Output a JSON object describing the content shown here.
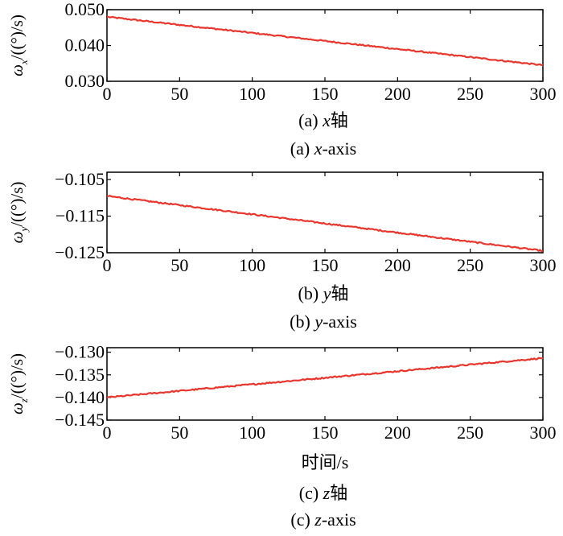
{
  "chart_data": [
    {
      "type": "line",
      "ylabel": {
        "symbol": "ω",
        "subscript": "x",
        "unit": "/((°)/s)"
      },
      "xlabel": "",
      "caption_cn": {
        "prefix": "(a) ",
        "axis": "x",
        "suffix": "轴"
      },
      "caption_en": {
        "prefix": "(a) ",
        "axis": "x",
        "suffix": "-axis"
      },
      "xlim": [
        0,
        300
      ],
      "ylim": [
        0.03,
        0.05
      ],
      "xticks": [
        0,
        50,
        100,
        150,
        200,
        250,
        300
      ],
      "yticks": [
        "0.030",
        "0.040",
        "0.050"
      ],
      "ytick_values": [
        0.03,
        0.04,
        0.05
      ],
      "series": [
        {
          "x": [
            0,
            300
          ],
          "values": [
            0.048,
            0.0345
          ]
        }
      ],
      "noise": 0.00018,
      "color": "#e8362c",
      "grid": false
    },
    {
      "type": "line",
      "ylabel": {
        "symbol": "ω",
        "subscript": "y",
        "unit": "/((°)/s)"
      },
      "xlabel": "",
      "caption_cn": {
        "prefix": "(b) ",
        "axis": "y",
        "suffix": "轴"
      },
      "caption_en": {
        "prefix": "(b) ",
        "axis": "y",
        "suffix": "-axis"
      },
      "xlim": [
        0,
        300
      ],
      "ylim": [
        -0.125,
        -0.103
      ],
      "xticks": [
        0,
        50,
        100,
        150,
        200,
        250,
        300
      ],
      "yticks": [
        "−0.125",
        "−0.115",
        "−0.105"
      ],
      "ytick_values": [
        -0.125,
        -0.115,
        -0.105
      ],
      "series": [
        {
          "x": [
            0,
            300
          ],
          "values": [
            -0.1095,
            -0.1245
          ]
        }
      ],
      "noise": 0.00018,
      "color": "#e8362c",
      "grid": false
    },
    {
      "type": "line",
      "ylabel": {
        "symbol": "ω",
        "subscript": "z",
        "unit": "/((°)/s)"
      },
      "xlabel": "时间/s",
      "caption_cn": {
        "prefix": "(c) ",
        "axis": "z",
        "suffix": "轴"
      },
      "caption_en": {
        "prefix": "(c) ",
        "axis": "z",
        "suffix": "-axis"
      },
      "xlim": [
        0,
        300
      ],
      "ylim": [
        -0.145,
        -0.129
      ],
      "xticks": [
        0,
        50,
        100,
        150,
        200,
        250,
        300
      ],
      "yticks": [
        "−0.145",
        "−0.140",
        "−0.135",
        "−0.130"
      ],
      "ytick_values": [
        -0.145,
        -0.14,
        -0.135,
        -0.13
      ],
      "series": [
        {
          "x": [
            0,
            300
          ],
          "values": [
            -0.14,
            -0.1313
          ]
        }
      ],
      "noise": 0.00015,
      "color": "#e8362c",
      "grid": false
    }
  ]
}
